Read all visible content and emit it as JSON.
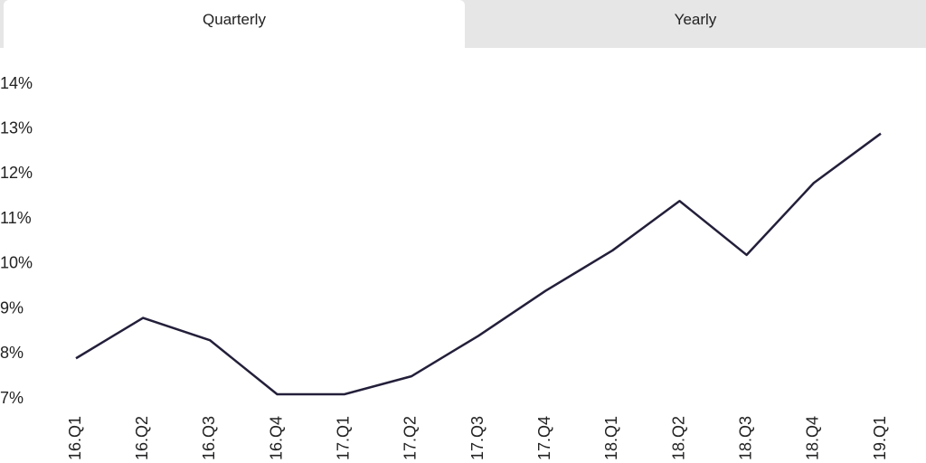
{
  "tabs": [
    "Quarterly",
    "Yearly"
  ],
  "chart_data": {
    "type": "line",
    "categories": [
      "16.Q1",
      "16.Q2",
      "16.Q3",
      "16.Q4",
      "17.Q1",
      "17.Q2",
      "17.Q3",
      "17.Q4",
      "18.Q1",
      "18.Q2",
      "18.Q3",
      "18.Q4",
      "19.Q1"
    ],
    "series": [
      {
        "color": "#231f3a",
        "values": [
          7.9,
          8.8,
          8.3,
          7.1,
          7.1,
          7.5,
          8.4,
          9.4,
          10.3,
          11.4,
          10.2,
          11.8,
          12.9
        ]
      }
    ],
    "ylim": [
      7,
      14
    ],
    "yticks": [
      {
        "value": 7,
        "label": "7%"
      },
      {
        "value": 8,
        "label": "8%"
      },
      {
        "value": 9,
        "label": "9%"
      },
      {
        "value": 10,
        "label": "10%"
      },
      {
        "value": 11,
        "label": "11%"
      },
      {
        "value": 12,
        "label": "12%"
      },
      {
        "value": 13,
        "label": "13%"
      },
      {
        "value": 14,
        "label": "14%"
      }
    ]
  }
}
